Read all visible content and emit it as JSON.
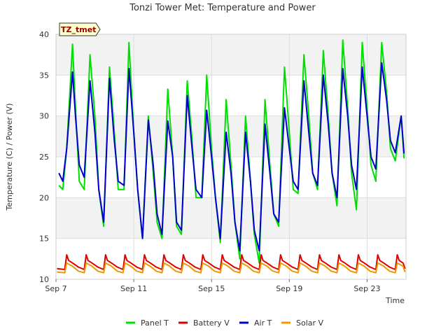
{
  "chart_data": {
    "type": "line",
    "title": "Tonzi Tower Met: Temperature and Power",
    "badge": "TZ_tmet",
    "xlabel": "Time",
    "ylabel": "Temperature (C) / Power (V)",
    "xlim": [
      7,
      25
    ],
    "ylim": [
      10,
      40
    ],
    "yticks": [
      10,
      15,
      20,
      25,
      30,
      35,
      40
    ],
    "xticks": [
      {
        "value": 7,
        "label": "Sep 7"
      },
      {
        "value": 11,
        "label": "Sep 11"
      },
      {
        "value": 15,
        "label": "Sep 15"
      },
      {
        "value": 19,
        "label": "Sep 19"
      },
      {
        "value": 23,
        "label": "Sep 23"
      }
    ],
    "grid": true,
    "legend_position": "bottom",
    "x_unit": "day of September",
    "series": [
      {
        "name": "Panel T",
        "color": "#00e000",
        "x": [
          7.15,
          7.35,
          7.55,
          7.85,
          8.0,
          8.2,
          8.45,
          8.75,
          9.0,
          9.2,
          9.45,
          9.75,
          10.0,
          10.2,
          10.5,
          10.75,
          11.0,
          11.2,
          11.45,
          11.75,
          12.0,
          12.2,
          12.45,
          12.75,
          13.0,
          13.2,
          13.45,
          13.75,
          14.0,
          14.2,
          14.5,
          14.75,
          15.0,
          15.2,
          15.45,
          15.75,
          16.0,
          16.2,
          16.45,
          16.75,
          17.0,
          17.2,
          17.45,
          17.75,
          18.0,
          18.2,
          18.45,
          18.75,
          19.0,
          19.2,
          19.45,
          19.75,
          20.0,
          20.2,
          20.45,
          20.75,
          21.0,
          21.2,
          21.45,
          21.75,
          22.0,
          22.2,
          22.45,
          22.75,
          23.0,
          23.2,
          23.45,
          23.75,
          24.0,
          24.2,
          24.45,
          24.75,
          24.9
        ],
        "values": [
          21.5,
          21.0,
          26.0,
          38.8,
          31.0,
          22.0,
          21.0,
          37.5,
          30.0,
          21.0,
          16.5,
          36.0,
          28.0,
          21.0,
          21.0,
          39.0,
          28.0,
          21.0,
          15.0,
          30.0,
          23.0,
          17.0,
          15.0,
          33.3,
          25.0,
          16.5,
          15.5,
          34.3,
          27.0,
          20.0,
          20.0,
          35.0,
          26.0,
          20.0,
          14.5,
          32.0,
          24.0,
          17.0,
          12.5,
          30.0,
          22.0,
          15.5,
          12.0,
          32.0,
          24.0,
          18.0,
          16.5,
          36.0,
          28.0,
          21.0,
          20.5,
          37.5,
          30.0,
          23.0,
          21.0,
          38.0,
          30.0,
          23.0,
          19.0,
          39.3,
          31.0,
          23.0,
          18.5,
          39.0,
          31.0,
          24.0,
          22.0,
          39.0,
          33.0,
          26.0,
          24.5,
          30.0,
          24.8
        ]
      },
      {
        "name": "Battery V",
        "color": "#dd0000",
        "x": [
          7.05,
          7.45,
          7.55,
          7.65,
          7.85,
          8.15,
          8.45,
          8.55,
          8.65,
          8.85,
          9.15,
          9.45,
          9.55,
          9.65,
          9.85,
          10.15,
          10.45,
          10.55,
          10.65,
          10.85,
          11.15,
          11.45,
          11.55,
          11.65,
          11.85,
          12.15,
          12.45,
          12.55,
          12.65,
          12.85,
          13.15,
          13.45,
          13.55,
          13.65,
          13.85,
          14.15,
          14.45,
          14.55,
          14.65,
          14.85,
          15.15,
          15.45,
          15.55,
          15.65,
          15.85,
          16.15,
          16.45,
          16.55,
          16.65,
          16.85,
          17.15,
          17.45,
          17.55,
          17.65,
          17.85,
          18.15,
          18.45,
          18.55,
          18.65,
          18.85,
          19.15,
          19.45,
          19.55,
          19.65,
          19.85,
          20.15,
          20.45,
          20.55,
          20.65,
          20.85,
          21.15,
          21.45,
          21.55,
          21.65,
          21.85,
          22.15,
          22.45,
          22.55,
          22.65,
          22.85,
          23.15,
          23.45,
          23.55,
          23.65,
          23.85,
          24.15,
          24.45,
          24.55,
          24.65,
          24.85,
          24.95
        ],
        "values": [
          11.3,
          11.2,
          13.0,
          12.3,
          12.0,
          11.5,
          11.2,
          13.0,
          12.3,
          12.0,
          11.5,
          11.2,
          13.0,
          12.3,
          12.0,
          11.5,
          11.2,
          13.0,
          12.3,
          12.0,
          11.5,
          11.2,
          13.0,
          12.3,
          12.0,
          11.5,
          11.2,
          13.0,
          12.3,
          12.0,
          11.5,
          11.2,
          13.0,
          12.3,
          12.0,
          11.5,
          11.2,
          13.0,
          12.3,
          12.0,
          11.5,
          11.2,
          13.0,
          12.3,
          12.0,
          11.5,
          11.2,
          13.0,
          12.3,
          12.0,
          11.5,
          11.2,
          13.0,
          12.3,
          12.0,
          11.5,
          11.2,
          13.0,
          12.3,
          12.0,
          11.5,
          11.2,
          13.0,
          12.3,
          12.0,
          11.5,
          11.2,
          13.0,
          12.3,
          12.0,
          11.5,
          11.2,
          13.0,
          12.3,
          12.0,
          11.5,
          11.2,
          13.0,
          12.3,
          12.0,
          11.5,
          11.2,
          13.0,
          12.3,
          12.0,
          11.5,
          11.2,
          13.0,
          12.3,
          12.0,
          11.3
        ]
      },
      {
        "name": "Air T",
        "color": "#0000cc",
        "x": [
          7.15,
          7.35,
          7.55,
          7.85,
          8.0,
          8.2,
          8.45,
          8.75,
          9.0,
          9.2,
          9.45,
          9.75,
          10.0,
          10.2,
          10.5,
          10.75,
          11.0,
          11.2,
          11.45,
          11.75,
          12.0,
          12.2,
          12.45,
          12.75,
          13.0,
          13.2,
          13.45,
          13.75,
          14.0,
          14.2,
          14.5,
          14.75,
          15.0,
          15.2,
          15.45,
          15.75,
          16.0,
          16.2,
          16.45,
          16.75,
          17.0,
          17.2,
          17.45,
          17.75,
          18.0,
          18.2,
          18.45,
          18.75,
          19.0,
          19.2,
          19.45,
          19.75,
          20.0,
          20.2,
          20.45,
          20.75,
          21.0,
          21.2,
          21.45,
          21.75,
          22.0,
          22.2,
          22.45,
          22.75,
          23.0,
          23.2,
          23.45,
          23.75,
          24.0,
          24.2,
          24.45,
          24.75,
          24.9
        ],
        "values": [
          23.0,
          22.0,
          26.0,
          35.4,
          30.0,
          24.0,
          22.5,
          34.3,
          28.0,
          21.0,
          17.0,
          34.6,
          27.0,
          22.0,
          21.5,
          35.8,
          28.0,
          21.0,
          15.0,
          29.5,
          24.0,
          18.0,
          15.5,
          29.4,
          25.0,
          17.0,
          16.0,
          32.5,
          26.0,
          21.0,
          20.0,
          30.7,
          25.0,
          20.0,
          15.0,
          28.0,
          23.0,
          17.0,
          13.5,
          28.0,
          22.0,
          16.0,
          13.5,
          29.0,
          23.0,
          18.0,
          17.0,
          31.0,
          26.0,
          22.0,
          21.0,
          34.3,
          28.0,
          23.0,
          21.5,
          35.0,
          29.0,
          23.0,
          20.0,
          35.8,
          30.0,
          24.0,
          21.0,
          36.0,
          30.0,
          25.0,
          23.5,
          36.5,
          32.0,
          27.0,
          25.5,
          30.0,
          25.4
        ]
      },
      {
        "name": "Solar V",
        "color": "#ee9900",
        "x": [
          7.05,
          7.45,
          7.55,
          7.85,
          8.15,
          8.45,
          8.55,
          8.85,
          9.15,
          9.45,
          9.55,
          9.85,
          10.15,
          10.45,
          10.55,
          10.85,
          11.15,
          11.45,
          11.55,
          11.85,
          12.15,
          12.45,
          12.55,
          12.85,
          13.15,
          13.45,
          13.55,
          13.85,
          14.15,
          14.45,
          14.55,
          14.85,
          15.15,
          15.45,
          15.55,
          15.85,
          16.15,
          16.45,
          16.55,
          16.85,
          17.15,
          17.45,
          17.55,
          17.85,
          18.15,
          18.45,
          18.55,
          18.85,
          19.15,
          19.45,
          19.55,
          19.85,
          20.15,
          20.45,
          20.55,
          20.85,
          21.15,
          21.45,
          21.55,
          21.85,
          22.15,
          22.45,
          22.55,
          22.85,
          23.15,
          23.45,
          23.55,
          23.85,
          24.15,
          24.45,
          24.55,
          24.85,
          24.95
        ],
        "values": [
          10.9,
          10.8,
          12.0,
          11.6,
          11.0,
          10.8,
          12.0,
          11.6,
          11.0,
          10.8,
          12.0,
          11.6,
          11.0,
          10.8,
          12.0,
          11.6,
          11.0,
          10.8,
          12.0,
          11.6,
          11.0,
          10.8,
          12.0,
          11.6,
          11.0,
          10.8,
          12.0,
          11.6,
          11.0,
          10.8,
          12.0,
          11.6,
          11.0,
          10.8,
          12.0,
          11.6,
          11.0,
          10.8,
          12.0,
          11.6,
          11.0,
          10.8,
          12.0,
          11.6,
          11.0,
          10.8,
          12.0,
          11.6,
          11.0,
          10.8,
          12.0,
          11.6,
          11.0,
          10.8,
          12.0,
          11.6,
          11.0,
          10.8,
          12.0,
          11.6,
          11.0,
          10.8,
          12.0,
          11.6,
          11.0,
          10.8,
          12.0,
          11.6,
          11.0,
          10.8,
          12.0,
          11.6,
          10.9
        ]
      }
    ]
  }
}
